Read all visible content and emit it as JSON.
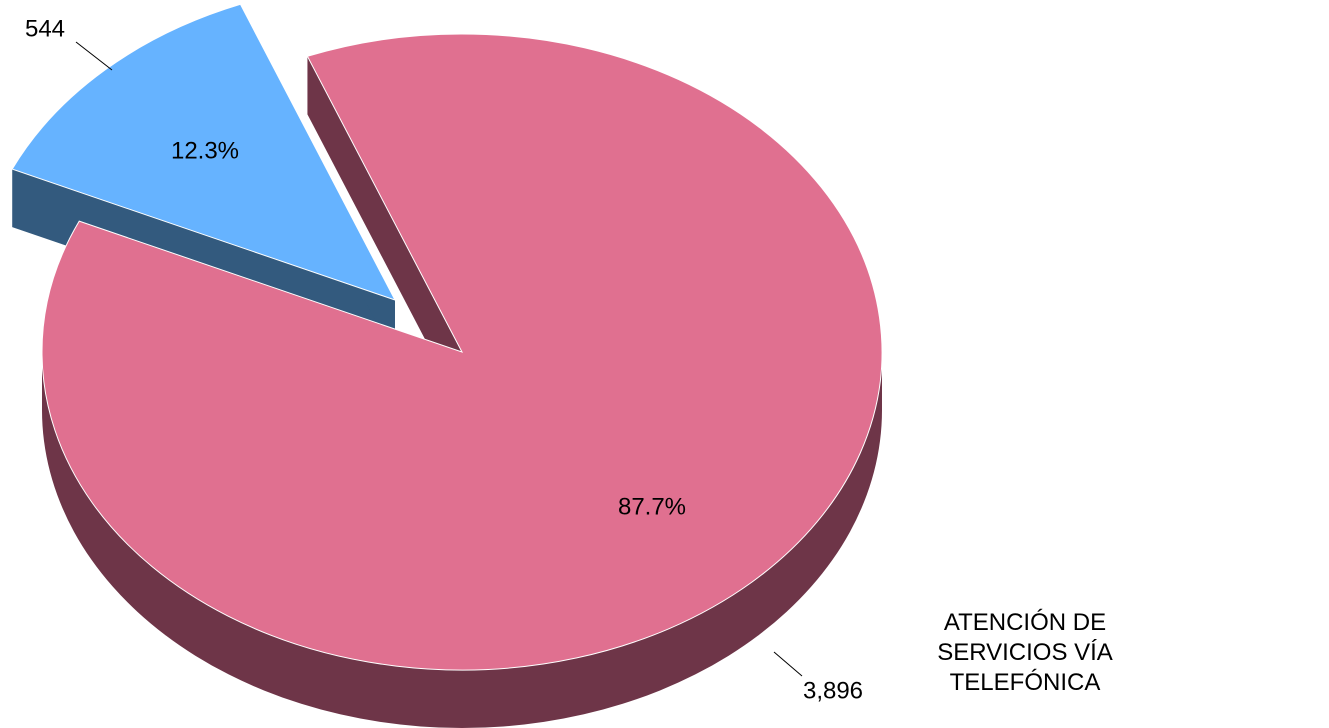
{
  "chart_data": {
    "type": "pie",
    "categories": [
      null,
      "ATENCIÓN DE SERVICIOS VÍA TELEFÓNICA"
    ],
    "values": [
      544,
      3896
    ],
    "value_labels": [
      "544",
      "3,896"
    ],
    "percentages": [
      12.3,
      87.7
    ],
    "percent_labels": [
      "12.3%",
      "87.7%"
    ],
    "colors": [
      "#66b3ff",
      "#e07090"
    ],
    "side_colors": [
      "#335a7e",
      "#6e3548"
    ]
  }
}
